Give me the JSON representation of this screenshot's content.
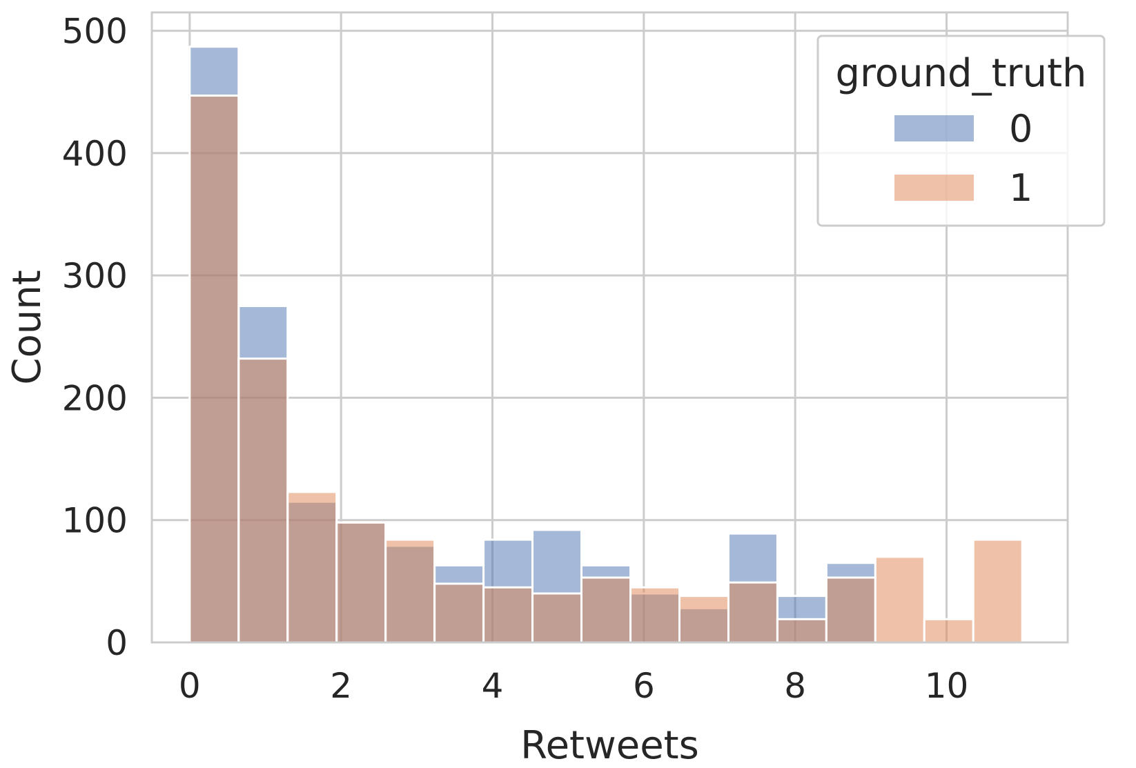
{
  "chart_data": {
    "type": "bar",
    "xlabel": "Retweets",
    "ylabel": "Count",
    "xlim": [
      -0.5,
      11.6
    ],
    "ylim": [
      0,
      515
    ],
    "xticks": [
      0,
      2,
      4,
      6,
      8,
      10
    ],
    "yticks": [
      0,
      100,
      200,
      300,
      400,
      500
    ],
    "grid": true,
    "legend": {
      "title": "ground_truth",
      "position": "top-right"
    },
    "bin_edges": [
      0,
      0.647,
      1.294,
      1.941,
      2.588,
      3.235,
      3.882,
      4.529,
      5.176,
      5.824,
      6.471,
      7.118,
      7.765,
      8.412,
      9.059,
      9.706,
      10.353,
      11.0
    ],
    "series": [
      {
        "name": "0",
        "color": "#4c72b0",
        "values": [
          487,
          275,
          115,
          98,
          79,
          63,
          84,
          92,
          63,
          40,
          28,
          89,
          38,
          65,
          0,
          0,
          0
        ]
      },
      {
        "name": "1",
        "color": "#dd8452",
        "values": [
          447,
          232,
          123,
          98,
          84,
          48,
          45,
          40,
          53,
          45,
          38,
          49,
          19,
          53,
          70,
          19,
          84
        ]
      }
    ]
  }
}
